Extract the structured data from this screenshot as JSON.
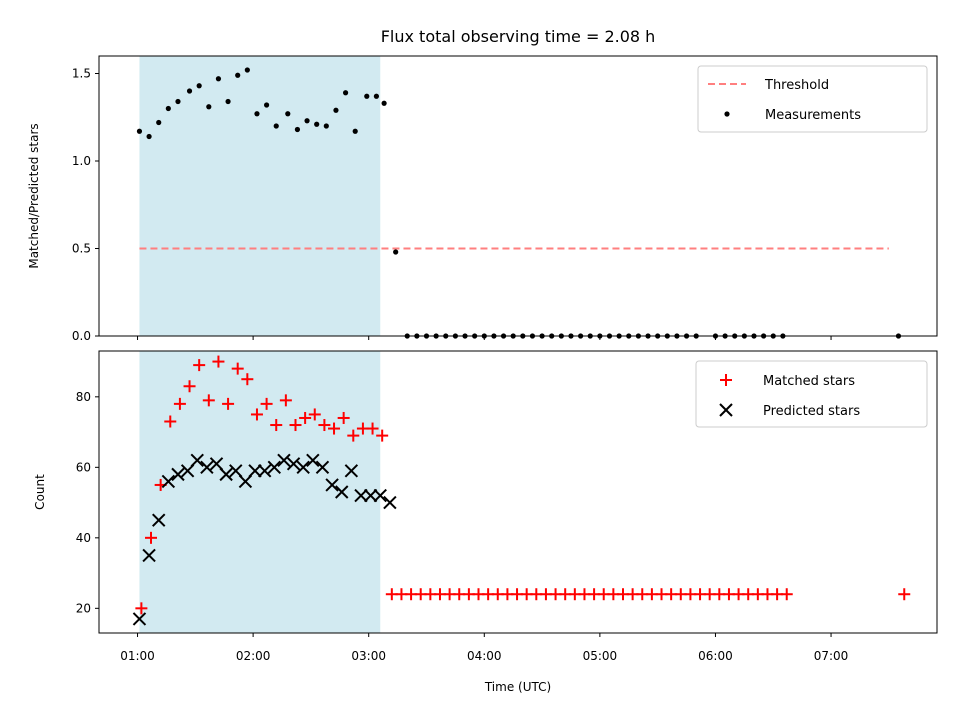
{
  "chart_data": {
    "title": "Flux total observing time = 2.08 h",
    "xlabel": "Time (UTC)",
    "xlim": [
      "00:40",
      "07:55"
    ],
    "x_ticks": [
      "01:00",
      "02:00",
      "03:00",
      "04:00",
      "05:00",
      "06:00",
      "07:00"
    ],
    "highlight_span": {
      "start": "01:01",
      "end": "03:06",
      "color": "#add8e6"
    },
    "colors": {
      "threshold": "#ff7f7f",
      "measurements": "#000000",
      "matched": "#ff0000",
      "predicted": "#000000",
      "span": "#add8e6"
    },
    "panels": [
      {
        "type": "scatter",
        "ylabel": "Matched/Predicted stars",
        "ylim": [
          0,
          1.6
        ],
        "y_ticks": [
          "0.0",
          "0.5",
          "1.0",
          "1.5"
        ],
        "legend": "top-right",
        "threshold": {
          "name": "Threshold",
          "value": 0.5,
          "x_start": "01:01",
          "x_end": "07:30"
        },
        "series": [
          {
            "name": "Measurements",
            "points": [
              [
                "01:01",
                1.17
              ],
              [
                "01:06",
                1.14
              ],
              [
                "01:11",
                1.22
              ],
              [
                "01:16",
                1.3
              ],
              [
                "01:21",
                1.34
              ],
              [
                "01:27",
                1.4
              ],
              [
                "01:32",
                1.43
              ],
              [
                "01:37",
                1.31
              ],
              [
                "01:42",
                1.47
              ],
              [
                "01:47",
                1.34
              ],
              [
                "01:52",
                1.49
              ],
              [
                "01:57",
                1.52
              ],
              [
                "02:02",
                1.27
              ],
              [
                "02:07",
                1.32
              ],
              [
                "02:12",
                1.2
              ],
              [
                "02:18",
                1.27
              ],
              [
                "02:23",
                1.18
              ],
              [
                "02:28",
                1.23
              ],
              [
                "02:33",
                1.21
              ],
              [
                "02:38",
                1.2
              ],
              [
                "02:43",
                1.29
              ],
              [
                "02:48",
                1.39
              ],
              [
                "02:53",
                1.17
              ],
              [
                "02:59",
                1.37
              ],
              [
                "03:04",
                1.37
              ],
              [
                "03:08",
                1.33
              ],
              [
                "03:14",
                0.48
              ],
              [
                "03:20",
                0
              ],
              [
                "03:25",
                0
              ],
              [
                "03:30",
                0
              ],
              [
                "03:35",
                0
              ],
              [
                "03:40",
                0
              ],
              [
                "03:45",
                0
              ],
              [
                "03:50",
                0
              ],
              [
                "03:55",
                0
              ],
              [
                "04:00",
                0
              ],
              [
                "04:05",
                0
              ],
              [
                "04:10",
                0
              ],
              [
                "04:15",
                0
              ],
              [
                "04:20",
                0
              ],
              [
                "04:25",
                0
              ],
              [
                "04:30",
                0
              ],
              [
                "04:35",
                0
              ],
              [
                "04:40",
                0
              ],
              [
                "04:45",
                0
              ],
              [
                "04:50",
                0
              ],
              [
                "04:55",
                0
              ],
              [
                "05:00",
                0
              ],
              [
                "05:05",
                0
              ],
              [
                "05:10",
                0
              ],
              [
                "05:15",
                0
              ],
              [
                "05:20",
                0
              ],
              [
                "05:25",
                0
              ],
              [
                "05:30",
                0
              ],
              [
                "05:35",
                0
              ],
              [
                "05:40",
                0
              ],
              [
                "05:45",
                0
              ],
              [
                "05:50",
                0
              ],
              [
                "06:00",
                0
              ],
              [
                "06:05",
                0
              ],
              [
                "06:10",
                0
              ],
              [
                "06:15",
                0
              ],
              [
                "06:20",
                0
              ],
              [
                "06:25",
                0
              ],
              [
                "06:30",
                0
              ],
              [
                "06:35",
                0
              ],
              [
                "07:35",
                0
              ]
            ]
          }
        ]
      },
      {
        "type": "scatter",
        "ylabel": "Count",
        "ylim": [
          13,
          93
        ],
        "y_ticks": [
          "20",
          "40",
          "60",
          "80"
        ],
        "legend": "top-right",
        "series": [
          {
            "name": "Matched stars",
            "points": [
              [
                "01:02",
                20
              ],
              [
                "01:07",
                40
              ],
              [
                "01:12",
                55
              ],
              [
                "01:17",
                73
              ],
              [
                "01:22",
                78
              ],
              [
                "01:27",
                83
              ],
              [
                "01:32",
                89
              ],
              [
                "01:37",
                79
              ],
              [
                "01:42",
                90
              ],
              [
                "01:47",
                78
              ],
              [
                "01:52",
                88
              ],
              [
                "01:57",
                85
              ],
              [
                "02:02",
                75
              ],
              [
                "02:07",
                78
              ],
              [
                "02:12",
                72
              ],
              [
                "02:17",
                79
              ],
              [
                "02:22",
                72
              ],
              [
                "02:27",
                74
              ],
              [
                "02:32",
                75
              ],
              [
                "02:37",
                72
              ],
              [
                "02:42",
                71
              ],
              [
                "02:47",
                74
              ],
              [
                "02:52",
                69
              ],
              [
                "02:57",
                71
              ],
              [
                "03:02",
                71
              ],
              [
                "03:07",
                69
              ],
              [
                "03:12",
                24
              ],
              [
                "03:17",
                24
              ],
              [
                "03:22",
                24
              ],
              [
                "03:27",
                24
              ],
              [
                "03:32",
                24
              ],
              [
                "03:37",
                24
              ],
              [
                "03:42",
                24
              ],
              [
                "03:47",
                24
              ],
              [
                "03:52",
                24
              ],
              [
                "03:57",
                24
              ],
              [
                "04:02",
                24
              ],
              [
                "04:07",
                24
              ],
              [
                "04:12",
                24
              ],
              [
                "04:17",
                24
              ],
              [
                "04:22",
                24
              ],
              [
                "04:27",
                24
              ],
              [
                "04:32",
                24
              ],
              [
                "04:37",
                24
              ],
              [
                "04:42",
                24
              ],
              [
                "04:47",
                24
              ],
              [
                "04:52",
                24
              ],
              [
                "04:57",
                24
              ],
              [
                "05:02",
                24
              ],
              [
                "05:07",
                24
              ],
              [
                "05:12",
                24
              ],
              [
                "05:17",
                24
              ],
              [
                "05:22",
                24
              ],
              [
                "05:27",
                24
              ],
              [
                "05:32",
                24
              ],
              [
                "05:37",
                24
              ],
              [
                "05:42",
                24
              ],
              [
                "05:47",
                24
              ],
              [
                "05:52",
                24
              ],
              [
                "05:57",
                24
              ],
              [
                "06:02",
                24
              ],
              [
                "06:07",
                24
              ],
              [
                "06:12",
                24
              ],
              [
                "06:17",
                24
              ],
              [
                "06:22",
                24
              ],
              [
                "06:27",
                24
              ],
              [
                "06:32",
                24
              ],
              [
                "06:37",
                24
              ],
              [
                "07:38",
                24
              ]
            ]
          },
          {
            "name": "Predicted stars",
            "points": [
              [
                "01:01",
                17
              ],
              [
                "01:06",
                35
              ],
              [
                "01:11",
                45
              ],
              [
                "01:16",
                56
              ],
              [
                "01:21",
                58
              ],
              [
                "01:26",
                59
              ],
              [
                "01:31",
                62
              ],
              [
                "01:36",
                60
              ],
              [
                "01:41",
                61
              ],
              [
                "01:46",
                58
              ],
              [
                "01:51",
                59
              ],
              [
                "01:56",
                56
              ],
              [
                "02:01",
                59
              ],
              [
                "02:06",
                59
              ],
              [
                "02:11",
                60
              ],
              [
                "02:16",
                62
              ],
              [
                "02:21",
                61
              ],
              [
                "02:26",
                60
              ],
              [
                "02:31",
                62
              ],
              [
                "02:36",
                60
              ],
              [
                "02:41",
                55
              ],
              [
                "02:46",
                53
              ],
              [
                "02:51",
                59
              ],
              [
                "02:56",
                52
              ],
              [
                "03:01",
                52
              ],
              [
                "03:06",
                52
              ],
              [
                "03:11",
                50
              ]
            ]
          }
        ]
      }
    ]
  }
}
